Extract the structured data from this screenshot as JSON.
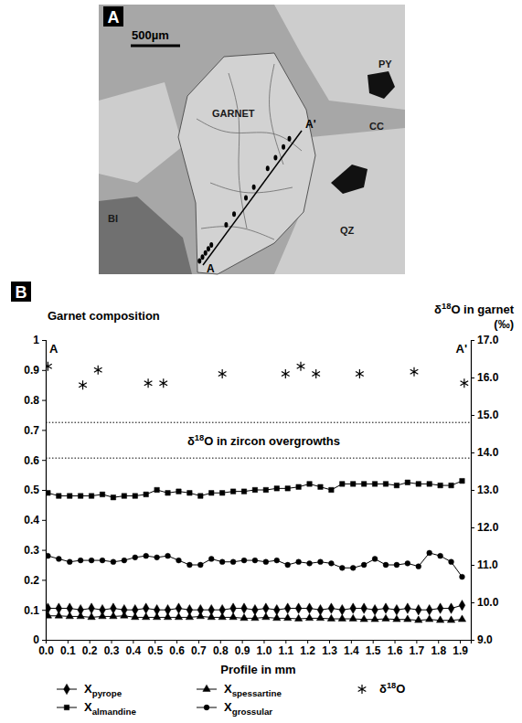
{
  "panel_a": {
    "letter": "A",
    "scale_bar": "500µm",
    "labels": [
      "GARNET",
      "PY",
      "CC",
      "QZ",
      "BI"
    ],
    "profile": {
      "start": "A",
      "end": "A'"
    }
  },
  "chart_data": {
    "type": "line",
    "panel_label": "B",
    "title": "Garnet composition",
    "y2_title": "δ18O in garnet (‰)",
    "xlabel": "Profile in mm",
    "x": [
      0.01,
      0.06,
      0.11,
      0.16,
      0.21,
      0.26,
      0.31,
      0.36,
      0.41,
      0.46,
      0.51,
      0.56,
      0.61,
      0.66,
      0.71,
      0.76,
      0.81,
      0.86,
      0.91,
      0.96,
      1.01,
      1.06,
      1.11,
      1.16,
      1.21,
      1.26,
      1.31,
      1.36,
      1.41,
      1.46,
      1.51,
      1.56,
      1.61,
      1.66,
      1.71,
      1.76,
      1.81,
      1.86,
      1.91
    ],
    "series": [
      {
        "name": "Xpyrope",
        "color": "#000000",
        "marker": "diamond",
        "line_style": "solid",
        "values": [
          0.105,
          0.105,
          0.105,
          0.1,
          0.105,
          0.1,
          0.105,
          0.1,
          0.1,
          0.105,
          0.1,
          0.1,
          0.105,
          0.1,
          0.1,
          0.1,
          0.1,
          0.105,
          0.105,
          0.1,
          0.105,
          0.1,
          0.105,
          0.105,
          0.105,
          0.1,
          0.105,
          0.1,
          0.105,
          0.105,
          0.1,
          0.105,
          0.1,
          0.105,
          0.1,
          0.1,
          0.105,
          0.105,
          0.115
        ]
      },
      {
        "name": "Xspessartine",
        "color": "#000000",
        "marker": "triangle",
        "line_style": "solid",
        "values": [
          0.08,
          0.08,
          0.078,
          0.078,
          0.075,
          0.078,
          0.078,
          0.08,
          0.075,
          0.075,
          0.075,
          0.075,
          0.075,
          0.075,
          0.078,
          0.075,
          0.075,
          0.075,
          0.072,
          0.072,
          0.075,
          0.072,
          0.072,
          0.07,
          0.072,
          0.072,
          0.07,
          0.07,
          0.07,
          0.068,
          0.068,
          0.07,
          0.068,
          0.068,
          0.065,
          0.068,
          0.065,
          0.065,
          0.068
        ]
      },
      {
        "name": "Xalmandine",
        "color": "#000000",
        "marker": "square",
        "line_style": "solid",
        "values": [
          0.49,
          0.48,
          0.48,
          0.48,
          0.48,
          0.485,
          0.475,
          0.48,
          0.48,
          0.485,
          0.5,
          0.49,
          0.495,
          0.49,
          0.48,
          0.49,
          0.49,
          0.495,
          0.495,
          0.5,
          0.5,
          0.505,
          0.505,
          0.51,
          0.52,
          0.51,
          0.5,
          0.52,
          0.52,
          0.52,
          0.52,
          0.52,
          0.515,
          0.525,
          0.52,
          0.52,
          0.515,
          0.515,
          0.53
        ]
      },
      {
        "name": "Xgrossular",
        "color": "#000000",
        "marker": "circle",
        "line_style": "solid",
        "values": [
          0.28,
          0.27,
          0.26,
          0.265,
          0.265,
          0.265,
          0.26,
          0.265,
          0.275,
          0.28,
          0.275,
          0.28,
          0.265,
          0.25,
          0.25,
          0.27,
          0.26,
          0.26,
          0.265,
          0.265,
          0.26,
          0.265,
          0.25,
          0.26,
          0.255,
          0.26,
          0.255,
          0.24,
          0.24,
          0.25,
          0.27,
          0.25,
          0.25,
          0.255,
          0.245,
          0.29,
          0.28,
          0.26,
          0.21
        ]
      },
      {
        "name": "δ18O",
        "color": "#000000",
        "marker": "asterisk",
        "line_style": "none",
        "axis": "y2",
        "type": "scatter",
        "x": [
          0.01,
          0.17,
          0.24,
          0.47,
          0.54,
          0.81,
          1.1,
          1.17,
          1.24,
          1.44,
          1.69,
          1.92
        ],
        "values": [
          16.3,
          15.8,
          16.2,
          15.85,
          15.85,
          16.1,
          16.1,
          16.3,
          16.1,
          16.1,
          16.15,
          15.85
        ]
      }
    ],
    "reference_lines": {
      "label": "δ18O in zircon overgrowths",
      "values": [
        13.85,
        14.8
      ],
      "axis": "y2",
      "line_style": "dotted"
    },
    "profile_ends": [
      "A",
      "A'"
    ],
    "xlim": [
      0,
      1.95
    ],
    "xticks": [
      {
        "value": 0,
        "label": "0.0"
      },
      {
        "value": 0.1,
        "label": "0.1"
      },
      {
        "value": 0.2,
        "label": "0.2"
      },
      {
        "value": 0.3,
        "label": "0.3"
      },
      {
        "value": 0.4,
        "label": "0.4"
      },
      {
        "value": 0.5,
        "label": "0.5"
      },
      {
        "value": 0.6,
        "label": "0.6"
      },
      {
        "value": 0.7,
        "label": "0.7"
      },
      {
        "value": 0.8,
        "label": "0.8"
      },
      {
        "value": 0.9,
        "label": "0.9"
      },
      {
        "value": 1,
        "label": "1.0"
      },
      {
        "value": 1.1,
        "label": "1.1"
      },
      {
        "value": 1.2,
        "label": "1.2"
      },
      {
        "value": 1.3,
        "label": "1.3"
      },
      {
        "value": 1.4,
        "label": "1.4"
      },
      {
        "value": 1.5,
        "label": "1.5"
      },
      {
        "value": 1.6,
        "label": "1.6"
      },
      {
        "value": 1.7,
        "label": "1.7"
      },
      {
        "value": 1.8,
        "label": "1.8"
      },
      {
        "value": 1.9,
        "label": "1.9"
      }
    ],
    "ylim": [
      0,
      1
    ],
    "yticks": [
      0,
      0.1,
      0.2,
      0.3,
      0.4,
      0.5,
      0.6,
      0.7,
      0.8,
      0.9,
      1
    ],
    "y2lim": [
      9,
      17
    ],
    "y2ticks": [
      {
        "value": 9,
        "label": "9.0"
      },
      {
        "value": 10,
        "label": "10.0"
      },
      {
        "value": 11,
        "label": "11.0"
      },
      {
        "value": 12,
        "label": "12.0"
      },
      {
        "value": 13,
        "label": "13.0"
      },
      {
        "value": 14,
        "label": "14.0"
      },
      {
        "value": 15,
        "label": "15.0"
      },
      {
        "value": 16,
        "label": "16.0"
      },
      {
        "value": 17,
        "label": "17.0"
      }
    ],
    "grid": false,
    "legend": "bottom"
  }
}
